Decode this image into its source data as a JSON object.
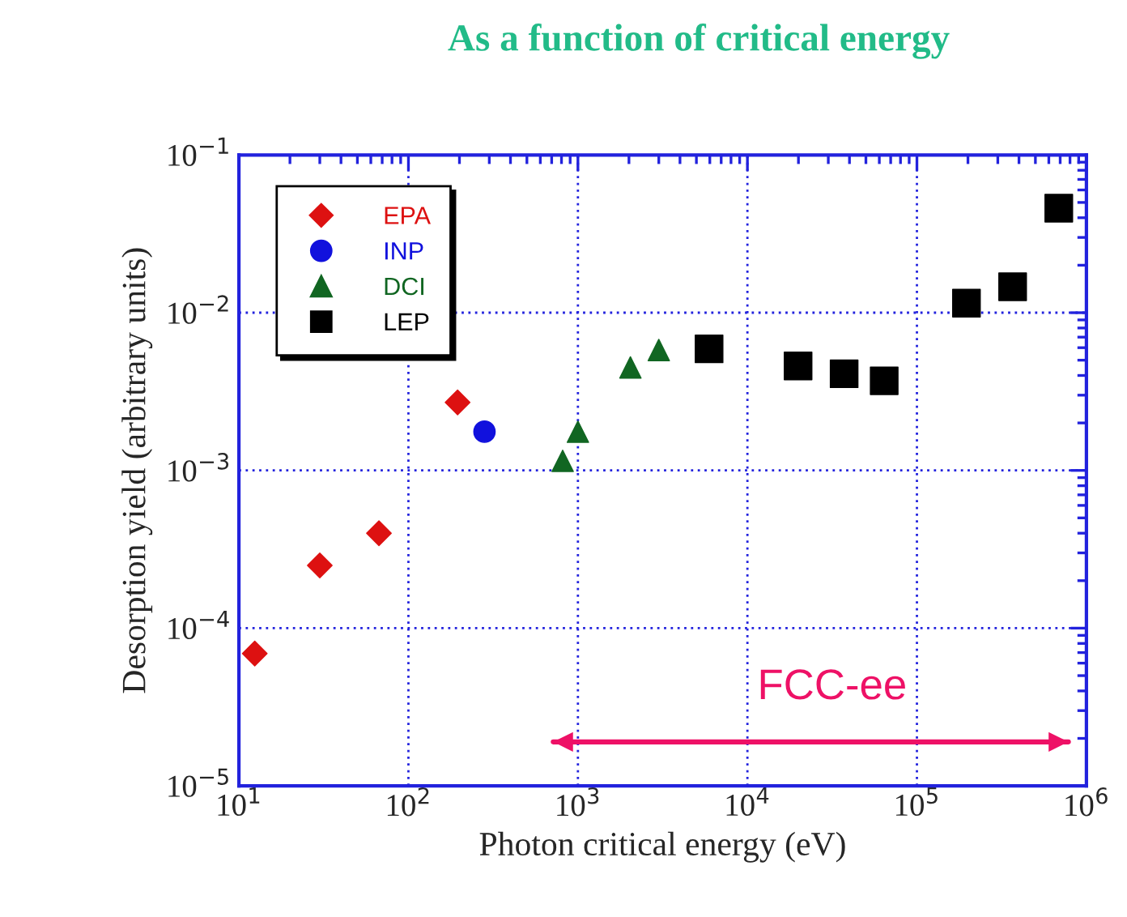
{
  "chart_data": {
    "type": "scatter",
    "title": "As a function of critical energy",
    "xlabel": "Photon critical energy (eV)",
    "ylabel": "Desorption yield (arbitrary units)",
    "log": "xy",
    "grid": true,
    "legend": "top left",
    "xlim": [
      10,
      1000000
    ],
    "ylim": [
      1e-05,
      0.1
    ],
    "xticks": [
      {
        "value": 10,
        "label": "10$^{1}$"
      },
      {
        "value": 100,
        "label": "10$^{2}$"
      },
      {
        "value": 1000,
        "label": "10$^{3}$"
      },
      {
        "value": 10000,
        "label": "10$^{4}$"
      },
      {
        "value": 100000,
        "label": "10$^{5}$"
      },
      {
        "value": 1000000,
        "label": "10$^{6}$"
      }
    ],
    "yticks": [
      {
        "value": 1e-05,
        "label": "10$^{−5}$"
      },
      {
        "value": 0.0001,
        "label": "10$^{−4}$"
      },
      {
        "value": 0.001,
        "label": "10$^{−3}$"
      },
      {
        "value": 0.01,
        "label": "10$^{−2}$"
      },
      {
        "value": 0.1,
        "label": "10$^{−1}$"
      }
    ],
    "series": [
      {
        "name": "EPA",
        "color": "#dd1111",
        "marker": "diamond",
        "x": [
          12.4,
          30,
          67,
          195
        ],
        "values": [
          6.9e-05,
          0.00025,
          0.0004,
          0.0027
        ]
      },
      {
        "name": "INP",
        "color": "#1111dd",
        "marker": "circle",
        "x": [
          281
        ],
        "values": [
          0.00176
        ]
      },
      {
        "name": "DCI",
        "color": "#116622",
        "marker": "triangle",
        "x": [
          813,
          1000,
          2040,
          3000
        ],
        "values": [
          0.00115,
          0.00176,
          0.0045,
          0.0058
        ]
      },
      {
        "name": "LEP",
        "color": "#000000",
        "marker": "square",
        "x": [
          5940,
          19900,
          37200,
          64100,
          196000,
          367000,
          687000
        ],
        "values": [
          0.0059,
          0.0046,
          0.0041,
          0.0037,
          0.0115,
          0.0146,
          0.046
        ]
      },
      {
        "type": "line",
        "color": "#ee1166",
        "x": [
          715,
          783000
        ],
        "values": [
          1.9e-05,
          1.9e-05
        ]
      }
    ],
    "annotations": [
      "FCC-ee"
    ]
  }
}
